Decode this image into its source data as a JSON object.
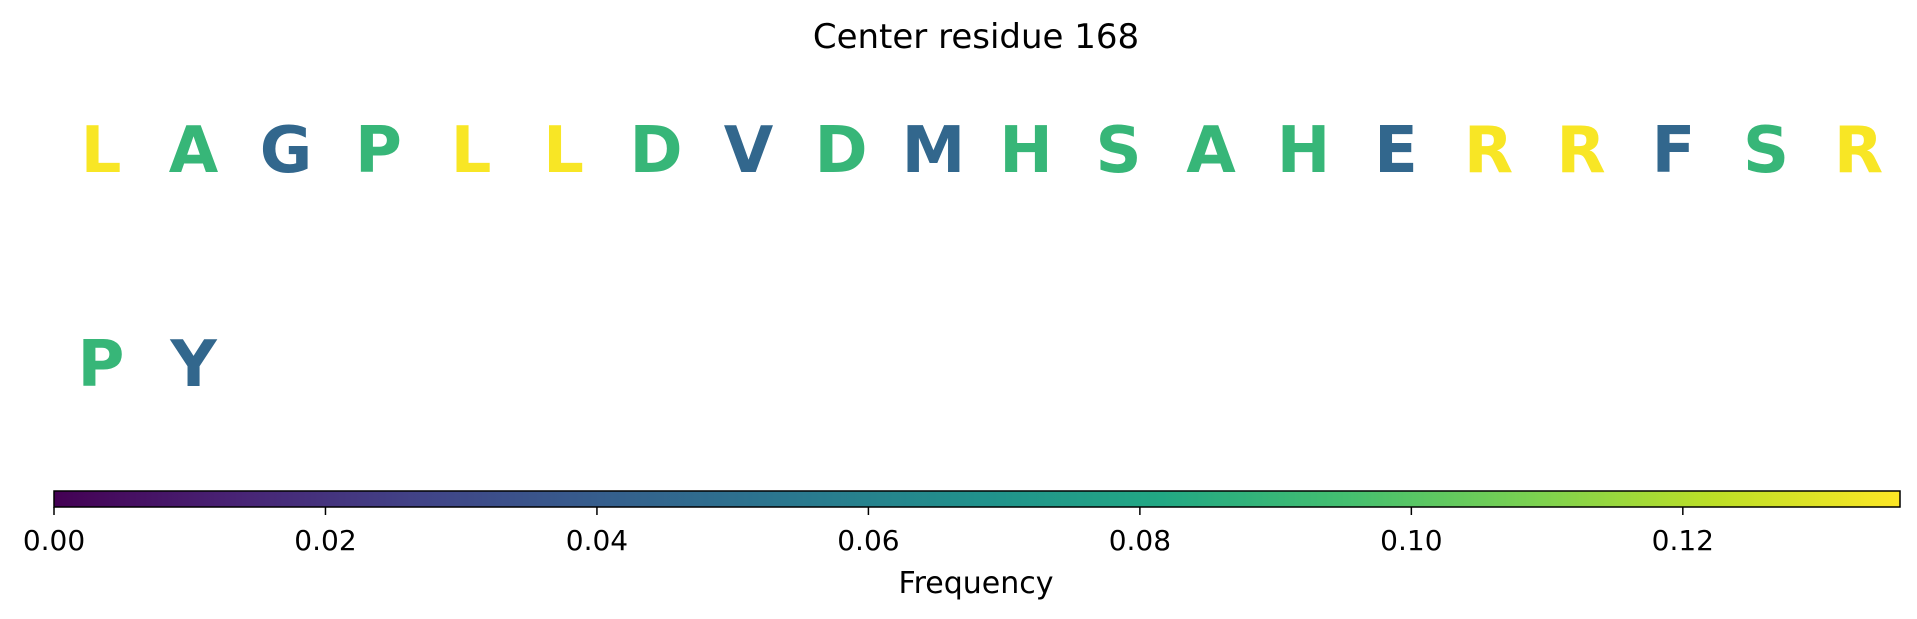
{
  "chart_data": {
    "type": "other",
    "title": "Center residue 168",
    "residues": [
      {
        "letter": "L",
        "frequency": 0.135
      },
      {
        "letter": "A",
        "frequency": 0.09
      },
      {
        "letter": "G",
        "frequency": 0.045
      },
      {
        "letter": "P",
        "frequency": 0.09
      },
      {
        "letter": "L",
        "frequency": 0.135
      },
      {
        "letter": "L",
        "frequency": 0.135
      },
      {
        "letter": "D",
        "frequency": 0.09
      },
      {
        "letter": "V",
        "frequency": 0.045
      },
      {
        "letter": "D",
        "frequency": 0.09
      },
      {
        "letter": "M",
        "frequency": 0.045
      },
      {
        "letter": "H",
        "frequency": 0.09
      },
      {
        "letter": "S",
        "frequency": 0.09
      },
      {
        "letter": "A",
        "frequency": 0.09
      },
      {
        "letter": "H",
        "frequency": 0.09
      },
      {
        "letter": "E",
        "frequency": 0.045
      },
      {
        "letter": "R",
        "frequency": 0.135
      },
      {
        "letter": "R",
        "frequency": 0.135
      },
      {
        "letter": "F",
        "frequency": 0.045
      },
      {
        "letter": "S",
        "frequency": 0.09
      },
      {
        "letter": "R",
        "frequency": 0.135
      },
      {
        "letter": "P",
        "frequency": 0.09
      },
      {
        "letter": "Y",
        "frequency": 0.045
      }
    ],
    "colorbar": {
      "label": "Frequency",
      "range": [
        0,
        0.136
      ],
      "ticks": [
        0.0,
        0.02,
        0.04,
        0.06,
        0.08,
        0.1,
        0.12
      ],
      "tick_labels": [
        "0.00",
        "0.02",
        "0.04",
        "0.06",
        "0.08",
        "0.10",
        "0.12"
      ],
      "colormap": "viridis"
    }
  }
}
